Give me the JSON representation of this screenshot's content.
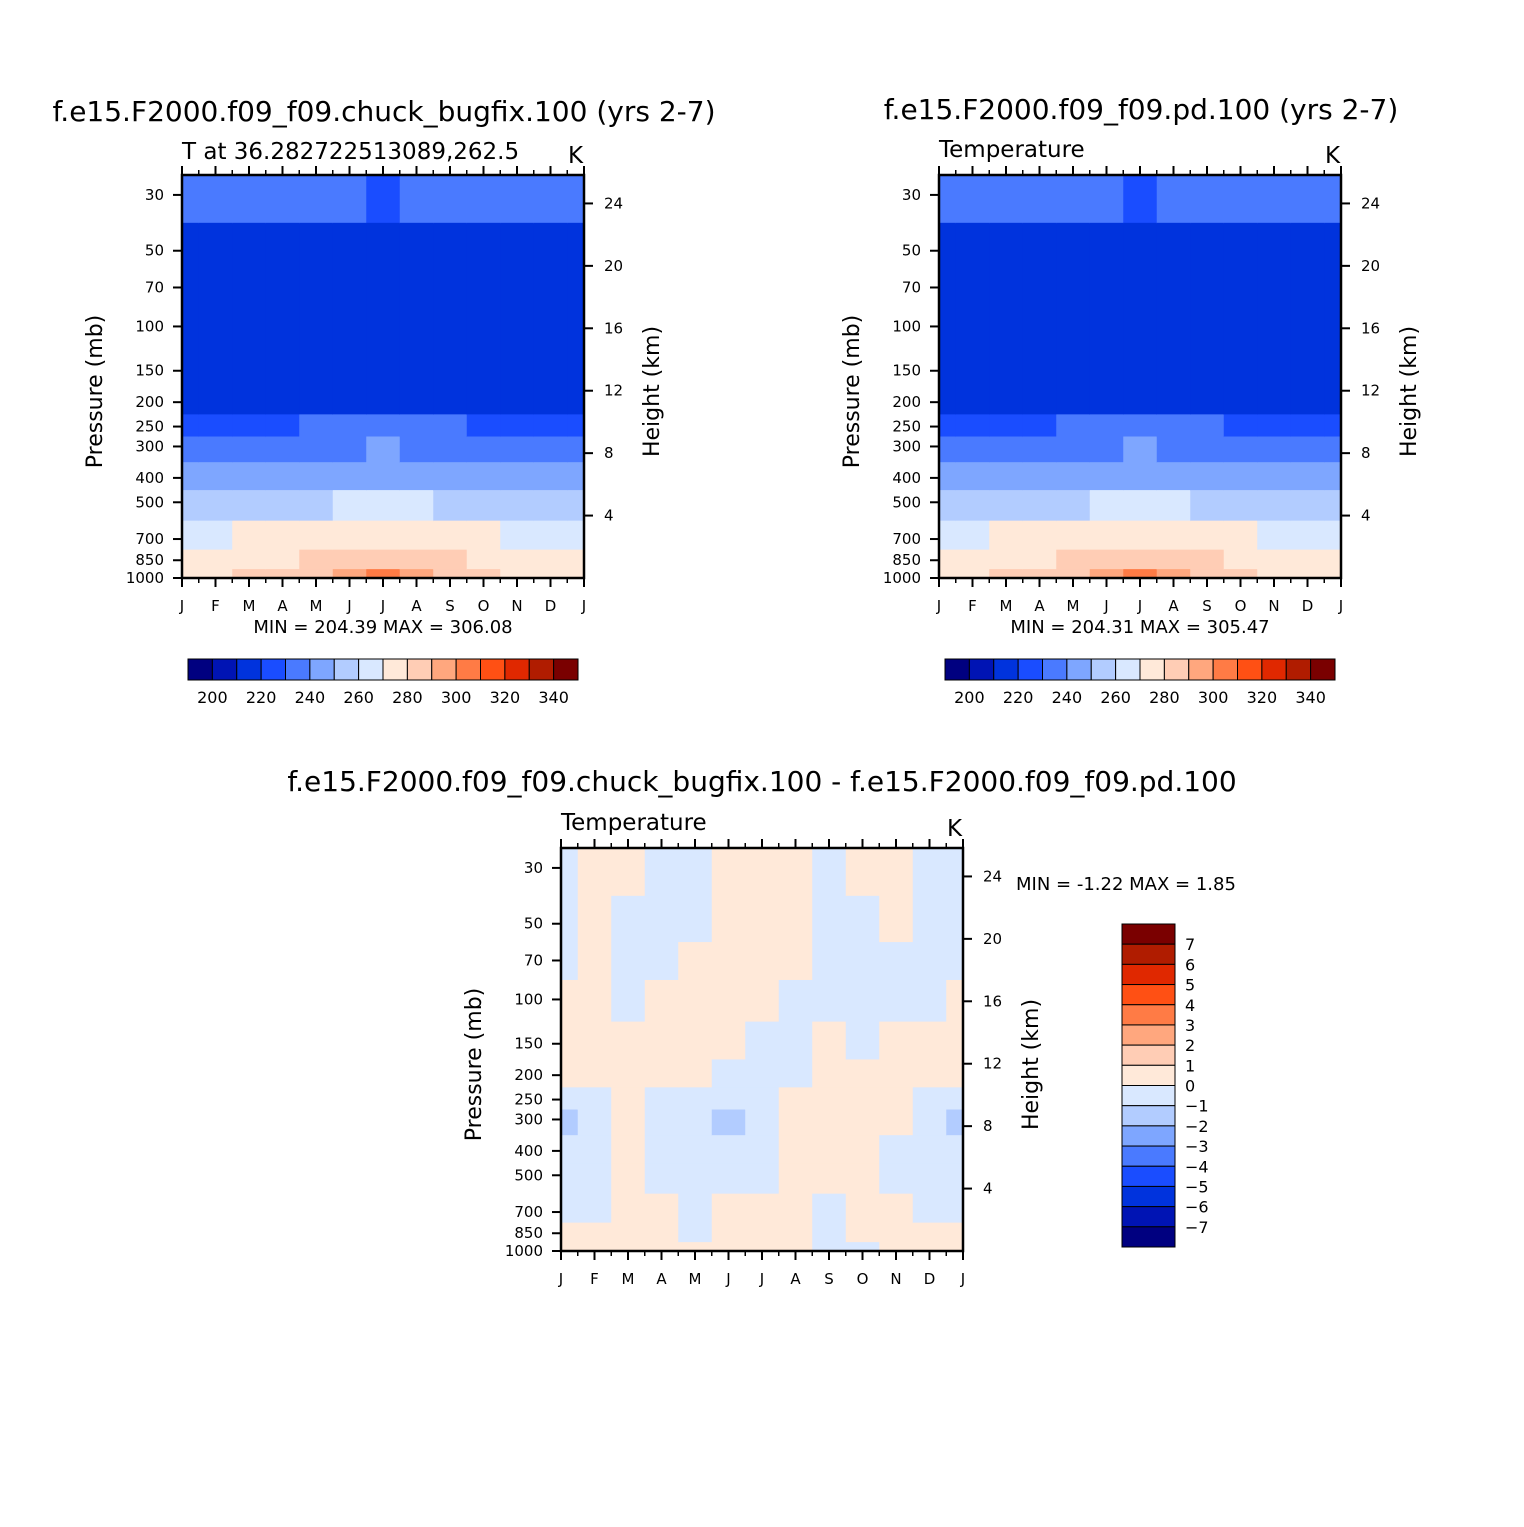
{
  "figure": {
    "panel_titles": [
      "f.e15.F2000.f09_f09.chuck_bugfix.100 (yrs 2-7)",
      "f.e15.F2000.f09_f09.pd.100 (yrs 2-7)",
      "f.e15.F2000.f09_f09.chuck_bugfix.100 - f.e15.F2000.f09_f09.pd.100"
    ]
  },
  "chart_data": [
    {
      "type": "heatmap",
      "title": "f.e15.F2000.f09_f09.chuck_bugfix.100 (yrs 2-7)",
      "subtitle": "T at 36.282722513089,262.5",
      "units": "K",
      "xlabel": "",
      "ylabel": "Pressure (mb)",
      "ylabel_right": "Height (km)",
      "x_ticks": [
        "J",
        "F",
        "M",
        "A",
        "M",
        "J",
        "J",
        "A",
        "S",
        "O",
        "N",
        "D",
        "J"
      ],
      "y_ticks": [
        30,
        50,
        70,
        100,
        150,
        200,
        250,
        300,
        400,
        500,
        700,
        850,
        1000
      ],
      "y_scale": "log",
      "y_right_ticks": [
        24,
        20,
        16,
        12,
        8,
        4
      ],
      "min_max_text": "MIN = 204.39 MAX = 306.08",
      "min": 204.39,
      "max": 306.08,
      "colorbar_labels": [
        "200",
        "220",
        "240",
        "260",
        "280",
        "300",
        "320",
        "340"
      ],
      "levels": [
        195,
        200,
        205,
        210,
        215,
        220,
        230,
        240,
        250,
        260,
        270,
        280,
        290,
        300,
        305,
        310,
        315,
        320,
        330,
        340,
        345
      ],
      "colors": [
        "#000080",
        "#0014b4",
        "#0033dd",
        "#1a4dff",
        "#4a7aff",
        "#7ea6ff",
        "#b2ccff",
        "#d9e8ff",
        "#ffe9d9",
        "#ffcdb5",
        "#ffa77e",
        "#ff7b45",
        "#ff5014",
        "#e02800",
        "#b01c00",
        "#7a0000"
      ],
      "series": [
        {
          "name": "J",
          "values": [
            225,
            210,
            206,
            206,
            206,
            209,
            218,
            220,
            238,
            250,
            268,
            280,
            285
          ]
        },
        {
          "name": "F",
          "values": [
            225,
            210,
            206,
            207,
            207,
            210,
            218,
            220,
            238,
            250,
            268,
            280,
            286
          ]
        },
        {
          "name": "M",
          "values": [
            224,
            208,
            206,
            207,
            208,
            212,
            218,
            222,
            238,
            252,
            272,
            285,
            290
          ]
        },
        {
          "name": "A",
          "values": [
            224,
            208,
            206,
            207,
            208,
            212,
            219,
            222,
            240,
            255,
            275,
            288,
            294
          ]
        },
        {
          "name": "M",
          "values": [
            223,
            208,
            206,
            206,
            206,
            212,
            220,
            225,
            242,
            258,
            278,
            292,
            298
          ]
        },
        {
          "name": "J",
          "values": [
            220,
            207,
            206,
            206,
            207,
            212,
            222,
            228,
            245,
            262,
            282,
            296,
            303
          ]
        },
        {
          "name": "J",
          "values": [
            218,
            206,
            205,
            205,
            206,
            212,
            223,
            230,
            247,
            264,
            284,
            298,
            306
          ]
        },
        {
          "name": "A",
          "values": [
            220,
            206,
            205,
            205,
            206,
            212,
            222,
            228,
            246,
            262,
            282,
            297,
            304
          ]
        },
        {
          "name": "S",
          "values": [
            222,
            207,
            205,
            206,
            207,
            212,
            220,
            226,
            243,
            258,
            278,
            292,
            299
          ]
        },
        {
          "name": "O",
          "values": [
            225,
            208,
            206,
            206,
            207,
            212,
            219,
            224,
            240,
            254,
            272,
            285,
            292
          ]
        },
        {
          "name": "N",
          "values": [
            225,
            209,
            206,
            206,
            207,
            210,
            218,
            222,
            238,
            250,
            268,
            280,
            286
          ]
        },
        {
          "name": "D",
          "values": [
            225,
            210,
            206,
            206,
            206,
            210,
            218,
            220,
            238,
            250,
            266,
            278,
            284
          ]
        },
        {
          "name": "J",
          "values": [
            225,
            210,
            206,
            206,
            206,
            209,
            218,
            220,
            238,
            250,
            268,
            280,
            285
          ]
        }
      ]
    },
    {
      "type": "heatmap",
      "title": "f.e15.F2000.f09_f09.pd.100 (yrs 2-7)",
      "subtitle": "Temperature",
      "units": "K",
      "xlabel": "",
      "ylabel": "Pressure (mb)",
      "ylabel_right": "Height (km)",
      "x_ticks": [
        "J",
        "F",
        "M",
        "A",
        "M",
        "J",
        "J",
        "A",
        "S",
        "O",
        "N",
        "D",
        "J"
      ],
      "y_ticks": [
        30,
        50,
        70,
        100,
        150,
        200,
        250,
        300,
        400,
        500,
        700,
        850,
        1000
      ],
      "y_scale": "log",
      "y_right_ticks": [
        24,
        20,
        16,
        12,
        8,
        4
      ],
      "min_max_text": "MIN = 204.31 MAX = 305.47",
      "min": 204.31,
      "max": 305.47,
      "colorbar_labels": [
        "200",
        "220",
        "240",
        "260",
        "280",
        "300",
        "320",
        "340"
      ],
      "levels": [
        195,
        200,
        205,
        210,
        215,
        220,
        230,
        240,
        250,
        260,
        270,
        280,
        290,
        300,
        305,
        310,
        315,
        320,
        330,
        340,
        345
      ],
      "colors": [
        "#000080",
        "#0014b4",
        "#0033dd",
        "#1a4dff",
        "#4a7aff",
        "#7ea6ff",
        "#b2ccff",
        "#d9e8ff",
        "#ffe9d9",
        "#ffcdb5",
        "#ffa77e",
        "#ff7b45",
        "#ff5014",
        "#e02800",
        "#b01c00",
        "#7a0000"
      ],
      "series": [
        {
          "name": "J",
          "values": [
            225,
            210,
            206,
            206,
            206,
            209,
            218,
            220,
            238,
            250,
            268,
            280,
            285
          ]
        },
        {
          "name": "F",
          "values": [
            225,
            209,
            206,
            207,
            207,
            210,
            218,
            220,
            238,
            250,
            268,
            280,
            286
          ]
        },
        {
          "name": "M",
          "values": [
            224,
            208,
            206,
            207,
            208,
            212,
            218,
            222,
            238,
            252,
            272,
            285,
            290
          ]
        },
        {
          "name": "A",
          "values": [
            224,
            208,
            206,
            206,
            208,
            212,
            219,
            222,
            240,
            255,
            275,
            288,
            294
          ]
        },
        {
          "name": "M",
          "values": [
            223,
            208,
            206,
            206,
            206,
            211,
            220,
            225,
            242,
            258,
            278,
            292,
            298
          ]
        },
        {
          "name": "J",
          "values": [
            220,
            207,
            206,
            206,
            207,
            212,
            222,
            228,
            245,
            262,
            282,
            296,
            303
          ]
        },
        {
          "name": "J",
          "values": [
            218,
            206,
            205,
            205,
            206,
            212,
            223,
            230,
            247,
            264,
            284,
            298,
            305
          ]
        },
        {
          "name": "A",
          "values": [
            220,
            206,
            205,
            205,
            206,
            212,
            222,
            228,
            246,
            262,
            282,
            297,
            304
          ]
        },
        {
          "name": "S",
          "values": [
            222,
            207,
            205,
            206,
            207,
            212,
            220,
            226,
            243,
            258,
            278,
            292,
            299
          ]
        },
        {
          "name": "O",
          "values": [
            225,
            208,
            206,
            206,
            207,
            212,
            219,
            224,
            240,
            254,
            272,
            285,
            292
          ]
        },
        {
          "name": "N",
          "values": [
            225,
            209,
            206,
            206,
            207,
            210,
            218,
            222,
            238,
            250,
            268,
            280,
            286
          ]
        },
        {
          "name": "D",
          "values": [
            225,
            210,
            206,
            206,
            206,
            210,
            218,
            220,
            238,
            250,
            266,
            278,
            284
          ]
        },
        {
          "name": "J",
          "values": [
            225,
            210,
            206,
            206,
            206,
            209,
            218,
            220,
            238,
            250,
            268,
            280,
            285
          ]
        }
      ]
    },
    {
      "type": "heatmap",
      "title": "f.e15.F2000.f09_f09.chuck_bugfix.100 - f.e15.F2000.f09_f09.pd.100",
      "subtitle": "Temperature",
      "units": "K",
      "xlabel": "",
      "ylabel": "Pressure (mb)",
      "ylabel_right": "Height (km)",
      "x_ticks": [
        "J",
        "F",
        "M",
        "A",
        "M",
        "J",
        "J",
        "A",
        "S",
        "O",
        "N",
        "D",
        "J"
      ],
      "y_ticks": [
        30,
        50,
        70,
        100,
        150,
        200,
        250,
        300,
        400,
        500,
        700,
        850,
        1000
      ],
      "y_scale": "log",
      "y_right_ticks": [
        24,
        20,
        16,
        12,
        8,
        4
      ],
      "min_max_text": "MIN =   -1.22 MAX =    1.85",
      "min": -1.22,
      "max": 1.85,
      "colorbar_labels": [
        "7",
        "6",
        "5",
        "4",
        "3",
        "2",
        "1",
        "0",
        "-1",
        "-2",
        "-3",
        "-4",
        "-5",
        "-6",
        "-7"
      ],
      "levels": [
        -8,
        -7,
        -6,
        -5,
        -4,
        -3,
        -2,
        -1,
        0,
        1,
        2,
        3,
        4,
        5,
        6,
        7,
        8
      ],
      "colors": [
        "#000080",
        "#0014b4",
        "#0033dd",
        "#1a4dff",
        "#4a7aff",
        "#7ea6ff",
        "#b2ccff",
        "#d9e8ff",
        "#ffe9d9",
        "#ffcdb5",
        "#ffa77e",
        "#ff7b45",
        "#ff5014",
        "#e02800",
        "#b01c00",
        "#7a0000"
      ],
      "series": [
        {
          "name": "J",
          "values": [
            -0.3,
            -0.4,
            -0.3,
            0.3,
            1.2,
            0.3,
            -0.4,
            -1.1,
            -0.5,
            -0.2,
            -0.1,
            0.3,
            0.5
          ]
        },
        {
          "name": "F",
          "values": [
            1.1,
            0.5,
            0.4,
            0.3,
            0.5,
            0.3,
            -0.2,
            -0.3,
            -0.3,
            -0.2,
            -0.2,
            0.5,
            0.9
          ]
        },
        {
          "name": "M",
          "values": [
            0.4,
            -0.2,
            -0.3,
            -0.2,
            0.3,
            0.3,
            0.3,
            0.3,
            0.4,
            0.3,
            0.5,
            1.2,
            0.7
          ]
        },
        {
          "name": "A",
          "values": [
            -0.3,
            -0.4,
            -0.3,
            0.4,
            0.6,
            0.5,
            -0.2,
            -0.3,
            -0.4,
            -0.4,
            0.3,
            0.3,
            0.4
          ]
        },
        {
          "name": "M",
          "values": [
            -0.2,
            -0.3,
            0.3,
            0.6,
            1.3,
            0.4,
            -0.4,
            -0.6,
            -0.5,
            -0.3,
            -0.2,
            -0.3,
            0.3
          ]
        },
        {
          "name": "J",
          "values": [
            0.4,
            0.5,
            0.4,
            0.3,
            0.2,
            -0.3,
            -0.4,
            -1.2,
            -0.4,
            -0.4,
            0.3,
            0.4,
            0.5
          ]
        },
        {
          "name": "J",
          "values": [
            0.3,
            0.4,
            0.3,
            0.2,
            -0.3,
            -0.4,
            -0.5,
            -0.4,
            -0.4,
            -0.3,
            0.3,
            0.3,
            0.3
          ]
        },
        {
          "name": "A",
          "values": [
            0.4,
            0.3,
            0.3,
            -0.3,
            -0.4,
            -0.3,
            0.3,
            0.4,
            0.3,
            0.4,
            0.4,
            0.3,
            0.3
          ]
        },
        {
          "name": "S",
          "values": [
            -0.3,
            -0.3,
            -0.4,
            -0.3,
            0.4,
            0.4,
            0.3,
            0.3,
            0.3,
            0.4,
            -0.3,
            -0.4,
            -0.3
          ]
        },
        {
          "name": "O",
          "values": [
            0.4,
            -0.3,
            -0.4,
            -0.3,
            -0.4,
            0.3,
            0.4,
            0.3,
            0.3,
            0.3,
            0.3,
            0.4,
            -0.3
          ]
        },
        {
          "name": "N",
          "values": [
            0.3,
            0.3,
            -0.4,
            -0.4,
            0.3,
            0.4,
            0.3,
            0.3,
            -0.3,
            -0.3,
            0.3,
            0.3,
            0.3
          ]
        },
        {
          "name": "D",
          "values": [
            -0.3,
            -0.2,
            -0.3,
            -0.3,
            0.3,
            0.3,
            -0.3,
            -0.4,
            -0.4,
            -0.3,
            -0.3,
            0.3,
            0.3
          ]
        },
        {
          "name": "J",
          "values": [
            -0.3,
            -0.4,
            -0.3,
            0.3,
            1.2,
            0.3,
            -0.4,
            -1.1,
            -0.5,
            -0.2,
            -0.1,
            0.3,
            0.5
          ]
        }
      ]
    }
  ]
}
